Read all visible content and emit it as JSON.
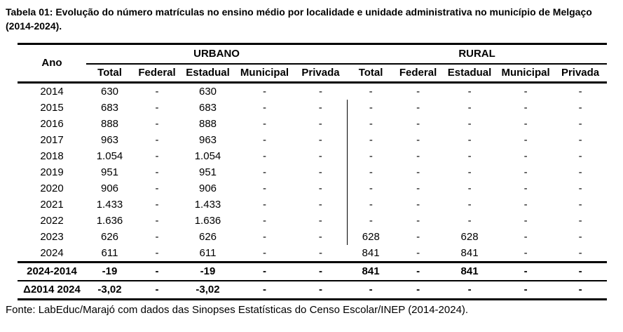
{
  "page": {
    "title": "Tabela 01: Evolução do número matrículas no ensino médio por localidade e unidade administrativa no município de Melgaço (2014-2024).",
    "source": "Fonte: LabEduc/Marajó com dados das Sinopses Estatísticas do Censo Escolar/INEP (2014-2024)."
  },
  "table": {
    "year_header": "Ano",
    "groups": [
      {
        "label": "URBANO"
      },
      {
        "label": "RURAL"
      }
    ],
    "subheaders": [
      "Total",
      "Federal",
      "Estadual",
      "Municipal",
      "Privada",
      "Total",
      "Federal",
      "Estadual",
      "Municipal",
      "Privada"
    ],
    "rows": [
      {
        "ano": "2014",
        "values": [
          "630",
          "-",
          "630",
          "-",
          "-",
          "-",
          "-",
          "-",
          "-",
          "-"
        ]
      },
      {
        "ano": "2015",
        "values": [
          "683",
          "-",
          "683",
          "-",
          "-",
          "-",
          "-",
          "-",
          "-",
          "-"
        ]
      },
      {
        "ano": "2016",
        "values": [
          "888",
          "-",
          "888",
          "-",
          "-",
          "-",
          "-",
          "-",
          "-",
          "-"
        ]
      },
      {
        "ano": "2017",
        "values": [
          "963",
          "-",
          "963",
          "-",
          "-",
          "-",
          "-",
          "-",
          "-",
          "-"
        ]
      },
      {
        "ano": "2018",
        "values": [
          "1.054",
          "-",
          "1.054",
          "-",
          "-",
          "-",
          "-",
          "-",
          "-",
          "-"
        ]
      },
      {
        "ano": "2019",
        "values": [
          "951",
          "-",
          "951",
          "-",
          "-",
          "-",
          "-",
          "-",
          "-",
          "-"
        ]
      },
      {
        "ano": "2020",
        "values": [
          "906",
          "-",
          "906",
          "-",
          "-",
          "-",
          "-",
          "-",
          "-",
          "-"
        ]
      },
      {
        "ano": "2021",
        "values": [
          "1.433",
          "-",
          "1.433",
          "-",
          "-",
          "-",
          "-",
          "-",
          "-",
          "-"
        ]
      },
      {
        "ano": "2022",
        "values": [
          "1.636",
          "-",
          "1.636",
          "-",
          "-",
          "-",
          "-",
          "-",
          "-",
          "-"
        ]
      },
      {
        "ano": "2023",
        "values": [
          "626",
          "-",
          "626",
          "-",
          "-",
          "628",
          "-",
          "628",
          "-",
          "-"
        ]
      },
      {
        "ano": "2024",
        "values": [
          "611",
          "-",
          "611",
          "-",
          "-",
          "841",
          "-",
          "841",
          "-",
          "-"
        ]
      }
    ],
    "summary_rows": [
      {
        "ano": "2024-2014",
        "values": [
          "-19",
          "-",
          "-19",
          "-",
          "-",
          "841",
          "-",
          "841",
          "-",
          "-"
        ]
      },
      {
        "ano": "Δ2014 2024",
        "values": [
          "-3,02",
          "-",
          "-3,02",
          "-",
          "-",
          "-",
          "-",
          "-",
          "-",
          "-"
        ]
      }
    ]
  }
}
